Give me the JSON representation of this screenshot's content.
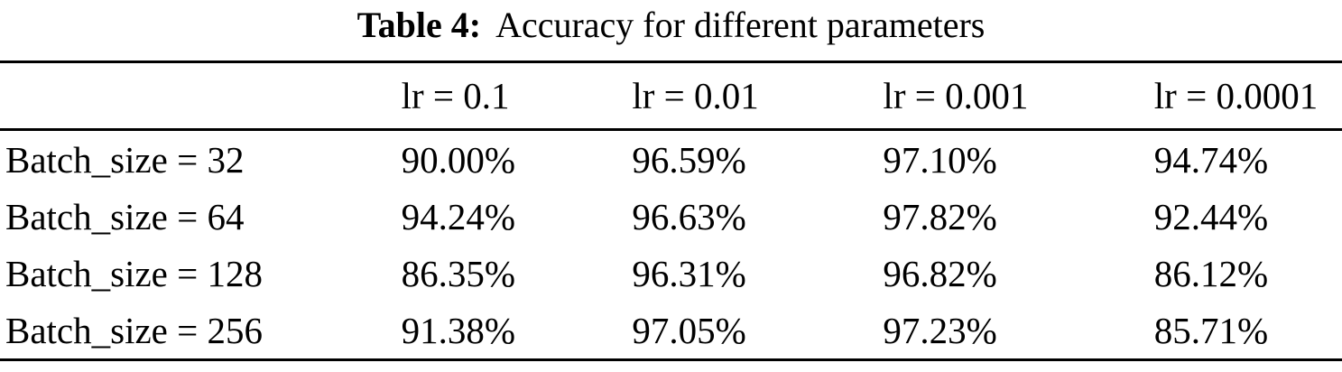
{
  "caption": {
    "label": "Table 4:",
    "text": "Accuracy for different parameters"
  },
  "table": {
    "column_headers": [
      "",
      "lr = 0.1",
      "lr = 0.01",
      "lr = 0.001",
      "lr = 0.0001"
    ],
    "rows": [
      {
        "label": "Batch_size = 32",
        "values": [
          "90.00%",
          "96.59%",
          "97.10%",
          "94.74%"
        ]
      },
      {
        "label": "Batch_size = 64",
        "values": [
          "94.24%",
          "96.63%",
          "97.82%",
          "92.44%"
        ]
      },
      {
        "label": "Batch_size = 128",
        "values": [
          "86.35%",
          "96.31%",
          "96.82%",
          "86.12%"
        ]
      },
      {
        "label": "Batch_size = 256",
        "values": [
          "91.38%",
          "97.05%",
          "97.23%",
          "85.71%"
        ]
      }
    ]
  },
  "colors": {
    "text": "#000000",
    "background": "#ffffff",
    "rule": "#000000"
  },
  "chart_data": {
    "type": "table",
    "title": "Table 4: Accuracy for different parameters",
    "columns": [
      "lr = 0.1",
      "lr = 0.01",
      "lr = 0.001",
      "lr = 0.0001"
    ],
    "row_labels": [
      "Batch_size = 32",
      "Batch_size = 64",
      "Batch_size = 128",
      "Batch_size = 256"
    ],
    "values_percent": [
      [
        90.0,
        96.59,
        97.1,
        94.74
      ],
      [
        94.24,
        96.63,
        97.82,
        92.44
      ],
      [
        86.35,
        96.31,
        96.82,
        86.12
      ],
      [
        91.38,
        97.05,
        97.23,
        85.71
      ]
    ]
  }
}
